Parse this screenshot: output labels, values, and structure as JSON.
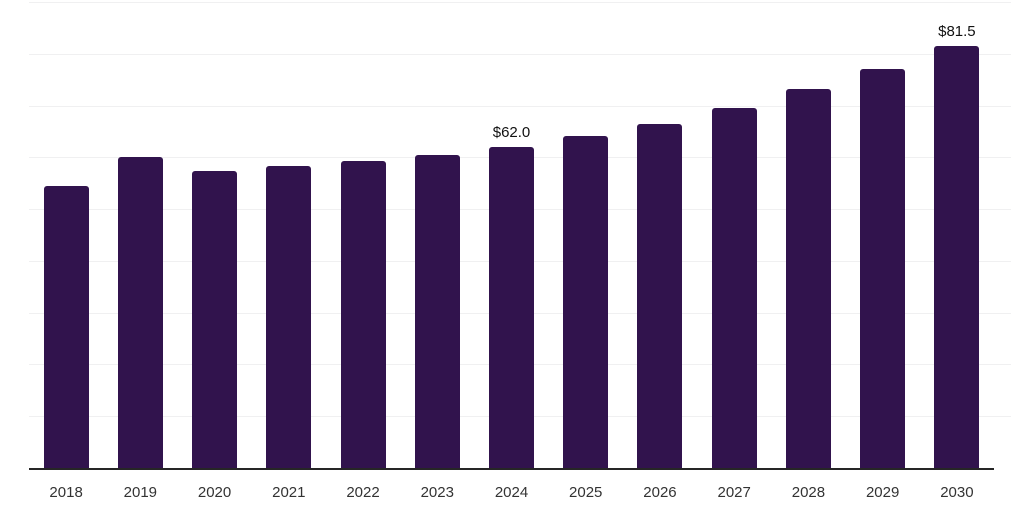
{
  "chart_data": {
    "type": "bar",
    "title": "",
    "xlabel": "",
    "ylabel": "",
    "categories": [
      "2018",
      "2019",
      "2020",
      "2021",
      "2022",
      "2023",
      "2024",
      "2025",
      "2026",
      "2027",
      "2028",
      "2029",
      "2030"
    ],
    "values": [
      54.5,
      60.0,
      57.3,
      58.3,
      59.3,
      60.5,
      62.0,
      64.1,
      66.5,
      69.6,
      73.2,
      77.0,
      81.5
    ],
    "data_labels": {
      "2024": "$62.0",
      "2030": "$81.5"
    },
    "ylim": [
      0,
      90
    ],
    "gridline_step": 10,
    "grid": true,
    "legend_position": "none",
    "bar_color": "#31134d",
    "gridline_color": "#f0f0f1",
    "axis_line_color": "#262626",
    "tick_label_color": "#333333",
    "data_label_color": "#111111"
  }
}
